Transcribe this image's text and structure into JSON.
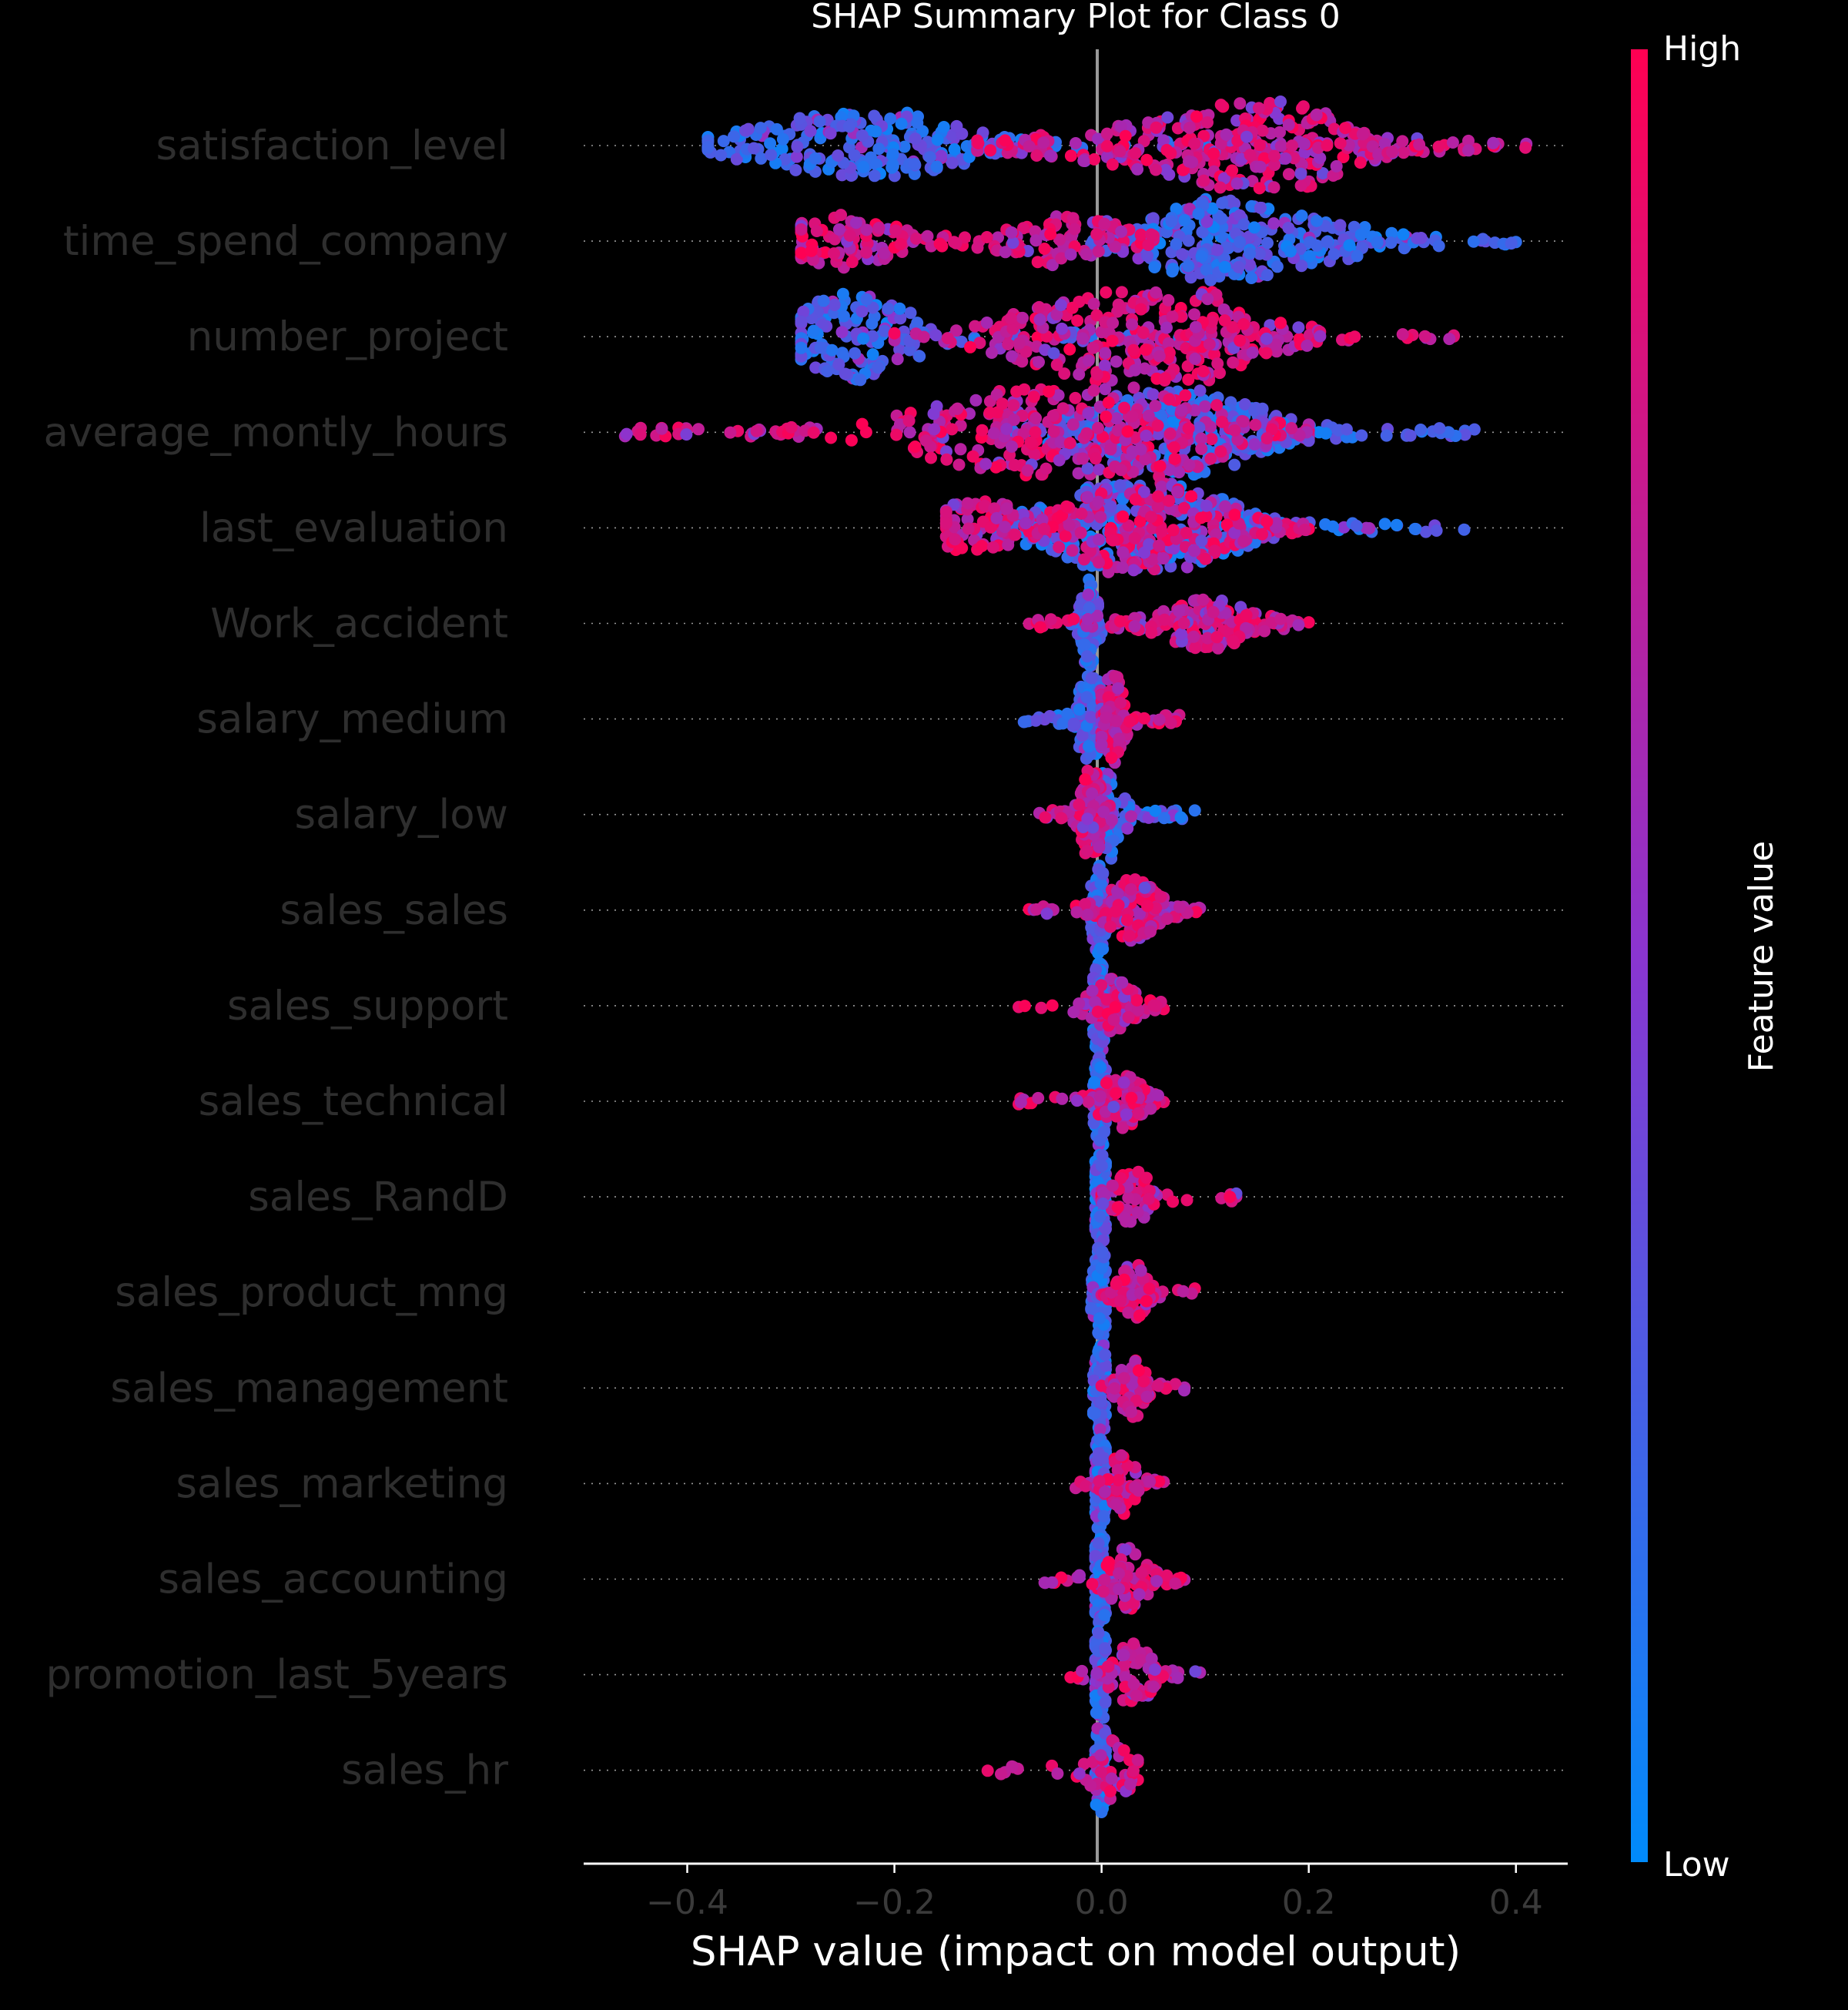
{
  "chart_data": {
    "type": "scatter",
    "subtype": "beeswarm",
    "title": "SHAP Summary Plot for Class 0",
    "xlabel": "SHAP value (impact on model output)",
    "ylabel": "",
    "xlim": [
      -0.5,
      0.45
    ],
    "xticks": [
      -0.4,
      -0.2,
      0.0,
      0.2,
      0.4
    ],
    "xtick_labels": [
      "−0.4",
      "−0.2",
      "0.0",
      "0.2",
      "0.4"
    ],
    "zero_line": 0.0,
    "colorbar": {
      "label": "Feature value",
      "high_label": "High",
      "low_label": "Low",
      "high_color": "#ff0052",
      "mid_color": "#8a35d0",
      "low_color": "#008bfb"
    },
    "features": [
      {
        "name": "satisfaction_level",
        "low": {
          "range": [
            -0.38,
            0.1
          ],
          "peaks": [
            [
              -0.2,
              0.6
            ],
            [
              -0.3,
              0.35
            ]
          ],
          "n": 230
        },
        "high": {
          "range": [
            -0.12,
            0.41
          ],
          "peaks": [
            [
              0.16,
              1.0
            ],
            [
              0.02,
              0.3
            ]
          ],
          "n": 340
        }
      },
      {
        "name": "time_spend_company",
        "low": {
          "range": [
            -0.01,
            0.4
          ],
          "peaks": [
            [
              0.1,
              0.8
            ],
            [
              0.2,
              0.4
            ]
          ],
          "n": 300
        },
        "high": {
          "range": [
            -0.29,
            0.05
          ],
          "peaks": [
            [
              -0.25,
              0.5
            ],
            [
              -0.03,
              0.5
            ]
          ],
          "n": 210
        }
      },
      {
        "name": "number_project",
        "low": {
          "range": [
            -0.29,
            0.1
          ],
          "peaks": [
            [
              -0.24,
              0.9
            ]
          ],
          "n": 160
        },
        "high": {
          "range": [
            -0.2,
            0.34
          ],
          "peaks": [
            [
              0.07,
              1.0
            ],
            [
              -0.03,
              0.5
            ]
          ],
          "n": 320
        }
      },
      {
        "name": "average_montly_hours",
        "low": {
          "range": [
            -0.1,
            0.36
          ],
          "peaks": [
            [
              0.1,
              0.7
            ],
            [
              0.02,
              0.4
            ]
          ],
          "n": 280
        },
        "high": {
          "range": [
            -0.46,
            0.2
          ],
          "peaks": [
            [
              0.03,
              0.9
            ],
            [
              -0.1,
              0.6
            ]
          ],
          "n": 360
        }
      },
      {
        "name": "last_evaluation",
        "low": {
          "range": [
            -0.1,
            0.35
          ],
          "peaks": [
            [
              0.0,
              0.7
            ],
            [
              0.08,
              0.6
            ]
          ],
          "n": 280
        },
        "high": {
          "range": [
            -0.15,
            0.2
          ],
          "peaks": [
            [
              -0.12,
              0.5
            ],
            [
              0.02,
              0.8
            ],
            [
              0.08,
              0.6
            ]
          ],
          "n": 300
        }
      },
      {
        "name": "Work_accident",
        "low": {
          "range": [
            -0.03,
            0.0
          ],
          "peaks": [
            [
              -0.012,
              1.0
            ]
          ],
          "n": 120
        },
        "high": {
          "range": [
            -0.07,
            0.2
          ],
          "peaks": [
            [
              0.1,
              0.5
            ]
          ],
          "n": 200
        }
      },
      {
        "name": "salary_medium",
        "low": {
          "range": [
            -0.075,
            0.01
          ],
          "peaks": [
            [
              -0.01,
              1.0
            ]
          ],
          "n": 110
        },
        "high": {
          "range": [
            0.0,
            0.075
          ],
          "peaks": [
            [
              0.01,
              1.0
            ]
          ],
          "n": 110
        }
      },
      {
        "name": "salary_low",
        "low": {
          "range": [
            -0.01,
            0.09
          ],
          "peaks": [
            [
              0.005,
              1.0
            ]
          ],
          "n": 90
        },
        "high": {
          "range": [
            -0.06,
            0.01
          ],
          "peaks": [
            [
              -0.01,
              1.0
            ]
          ],
          "n": 110
        }
      },
      {
        "name": "sales_sales",
        "low": {
          "range": [
            -0.01,
            0.005
          ],
          "peaks": [
            [
              -0.003,
              1.0
            ]
          ],
          "n": 90
        },
        "high": {
          "range": [
            -0.07,
            0.095
          ],
          "peaks": [
            [
              0.03,
              0.6
            ]
          ],
          "n": 140
        }
      },
      {
        "name": "sales_support",
        "low": {
          "range": [
            -0.008,
            0.004
          ],
          "peaks": [
            [
              -0.002,
              1.0
            ]
          ],
          "n": 80
        },
        "high": {
          "range": [
            -0.08,
            0.06
          ],
          "peaks": [
            [
              0.01,
              0.5
            ]
          ],
          "n": 90
        }
      },
      {
        "name": "sales_technical",
        "low": {
          "range": [
            -0.008,
            0.004
          ],
          "peaks": [
            [
              -0.001,
              1.0
            ]
          ],
          "n": 80
        },
        "high": {
          "range": [
            -0.08,
            0.06
          ],
          "peaks": [
            [
              0.02,
              0.5
            ]
          ],
          "n": 90
        }
      },
      {
        "name": "sales_RandD",
        "low": {
          "range": [
            -0.006,
            0.004
          ],
          "peaks": [
            [
              -0.001,
              1.0
            ]
          ],
          "n": 80
        },
        "high": {
          "range": [
            0.0,
            0.13
          ],
          "peaks": [
            [
              0.03,
              0.5
            ]
          ],
          "n": 70
        }
      },
      {
        "name": "sales_product_mng",
        "low": {
          "range": [
            -0.01,
            0.004
          ],
          "peaks": [
            [
              -0.001,
              1.0
            ]
          ],
          "n": 80
        },
        "high": {
          "range": [
            0.0,
            0.09
          ],
          "peaks": [
            [
              0.03,
              0.6
            ]
          ],
          "n": 80
        }
      },
      {
        "name": "sales_management",
        "low": {
          "range": [
            -0.008,
            0.004
          ],
          "peaks": [
            [
              -0.001,
              1.0
            ]
          ],
          "n": 80
        },
        "high": {
          "range": [
            0.0,
            0.08
          ],
          "peaks": [
            [
              0.03,
              0.6
            ]
          ],
          "n": 70
        }
      },
      {
        "name": "sales_marketing",
        "low": {
          "range": [
            -0.006,
            0.004
          ],
          "peaks": [
            [
              -0.001,
              1.0
            ]
          ],
          "n": 80
        },
        "high": {
          "range": [
            -0.025,
            0.06
          ],
          "peaks": [
            [
              0.02,
              0.6
            ]
          ],
          "n": 70
        }
      },
      {
        "name": "sales_accounting",
        "low": {
          "range": [
            -0.006,
            0.004
          ],
          "peaks": [
            [
              -0.001,
              1.0
            ]
          ],
          "n": 80
        },
        "high": {
          "range": [
            -0.055,
            0.08
          ],
          "peaks": [
            [
              0.025,
              0.6
            ]
          ],
          "n": 80
        }
      },
      {
        "name": "promotion_last_5years",
        "low": {
          "range": [
            -0.006,
            0.004
          ],
          "peaks": [
            [
              -0.001,
              1.0
            ]
          ],
          "n": 80
        },
        "high": {
          "range": [
            -0.03,
            0.095
          ],
          "peaks": [
            [
              0.03,
              0.6
            ]
          ],
          "n": 80
        }
      },
      {
        "name": "sales_hr",
        "low": {
          "range": [
            -0.006,
            0.004
          ],
          "peaks": [
            [
              -0.001,
              1.0
            ]
          ],
          "n": 70
        },
        "high": {
          "range": [
            -0.11,
            0.035
          ],
          "peaks": [
            [
              0.01,
              0.6
            ]
          ],
          "n": 50
        }
      }
    ]
  }
}
